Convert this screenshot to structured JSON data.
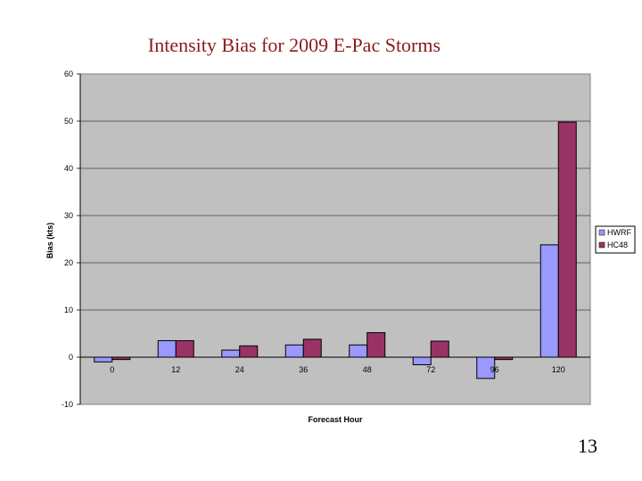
{
  "slide": {
    "title": "Intensity Bias for 2009 E-Pac Storms",
    "page_number": "13"
  },
  "chart_data": {
    "type": "bar",
    "xlabel": "Forecast Hour",
    "ylabel": "Bias (kts)",
    "categories": [
      "0",
      "12",
      "24",
      "36",
      "48",
      "72",
      "96",
      "120"
    ],
    "ytick_labels": [
      "-10",
      "0",
      "10",
      "20",
      "30",
      "40",
      "50",
      "60"
    ],
    "ylim": [
      -10,
      60
    ],
    "grid": true,
    "legend_position": "right",
    "plot_background": "#c0c0c0",
    "series": [
      {
        "name": "HWRF",
        "color": "#9999ff",
        "values": [
          -1,
          3.5,
          1.5,
          2.6,
          2.6,
          -1.6,
          -4.5,
          23.8
        ]
      },
      {
        "name": "HC48",
        "color": "#993366",
        "values": [
          -0.5,
          3.5,
          2.4,
          3.8,
          5.2,
          3.4,
          -0.5,
          49.8
        ]
      }
    ]
  }
}
